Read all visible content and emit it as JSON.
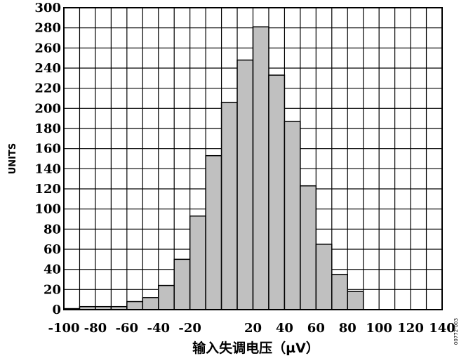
{
  "chart_data": {
    "type": "bar",
    "xlabel": "输入失调电压（µV）",
    "ylabel": "UNITS",
    "figure_id": "00772-003",
    "xlim": [
      -100,
      140
    ],
    "ylim": [
      0,
      300
    ],
    "x_ticks": [
      -100,
      -80,
      -60,
      -40,
      -20,
      20,
      40,
      60,
      80,
      100,
      120,
      140
    ],
    "y_ticks": [
      0,
      20,
      40,
      60,
      80,
      100,
      120,
      140,
      160,
      180,
      200,
      220,
      240,
      260,
      280,
      300
    ],
    "grid": true,
    "bin_width": 10,
    "bins_start": [
      -100,
      -90,
      -80,
      -70,
      -60,
      -50,
      -40,
      -30,
      -20,
      -10,
      0,
      10,
      20,
      30,
      40,
      50,
      60,
      70,
      80,
      90
    ],
    "values": [
      1,
      3,
      3,
      3,
      8,
      12,
      24,
      50,
      93,
      153,
      206,
      248,
      281,
      233,
      187,
      123,
      65,
      35,
      18,
      0
    ],
    "bar_fill": "#c0c0c0",
    "bar_stroke": "#000000"
  }
}
